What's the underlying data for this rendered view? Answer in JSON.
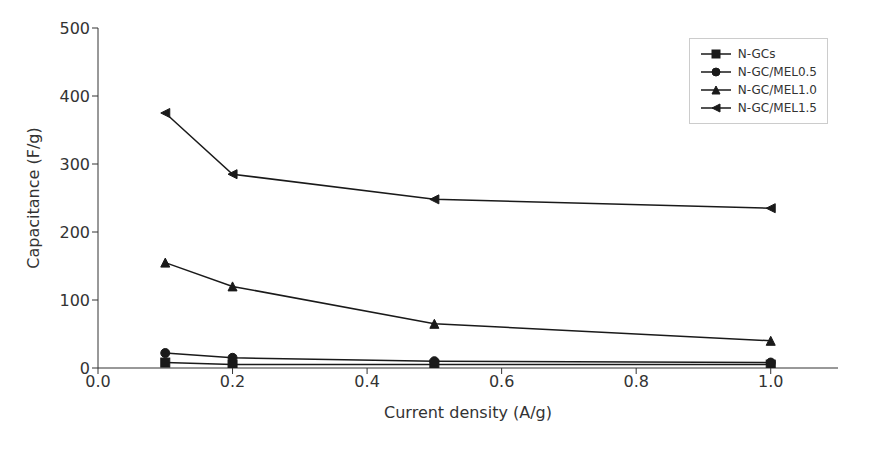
{
  "chart_data": {
    "type": "line",
    "x": [
      0.1,
      0.2,
      0.5,
      1.0
    ],
    "series": [
      {
        "name": "N-GCs",
        "color": "#1a1a1a",
        "marker": "square",
        "values": [
          8,
          5,
          5,
          5
        ]
      },
      {
        "name": "N-GC/MEL0.5",
        "color": "#1a1a1a",
        "marker": "circle",
        "values": [
          22,
          15,
          10,
          8
        ]
      },
      {
        "name": "N-GC/MEL1.0",
        "color": "#1a1a1a",
        "marker": "triangle",
        "values": [
          155,
          120,
          65,
          40
        ]
      },
      {
        "name": "N-GC/MEL1.5",
        "color": "#1a1a1a",
        "marker": "triangle-left",
        "values": [
          375,
          285,
          248,
          235
        ]
      }
    ],
    "xlabel": "Current density (A/g)",
    "ylabel": "Capacitance (F/g)",
    "xlim": [
      0,
      1.1
    ],
    "ylim": [
      0,
      500
    ],
    "xticks": [
      {
        "value": 0,
        "label": "0.0"
      },
      0.2,
      0.4,
      0.6,
      0.8,
      {
        "value": 1,
        "label": "1.0"
      }
    ],
    "yticks": [
      0,
      100,
      200,
      300,
      400,
      500
    ],
    "legend": "upper right"
  }
}
